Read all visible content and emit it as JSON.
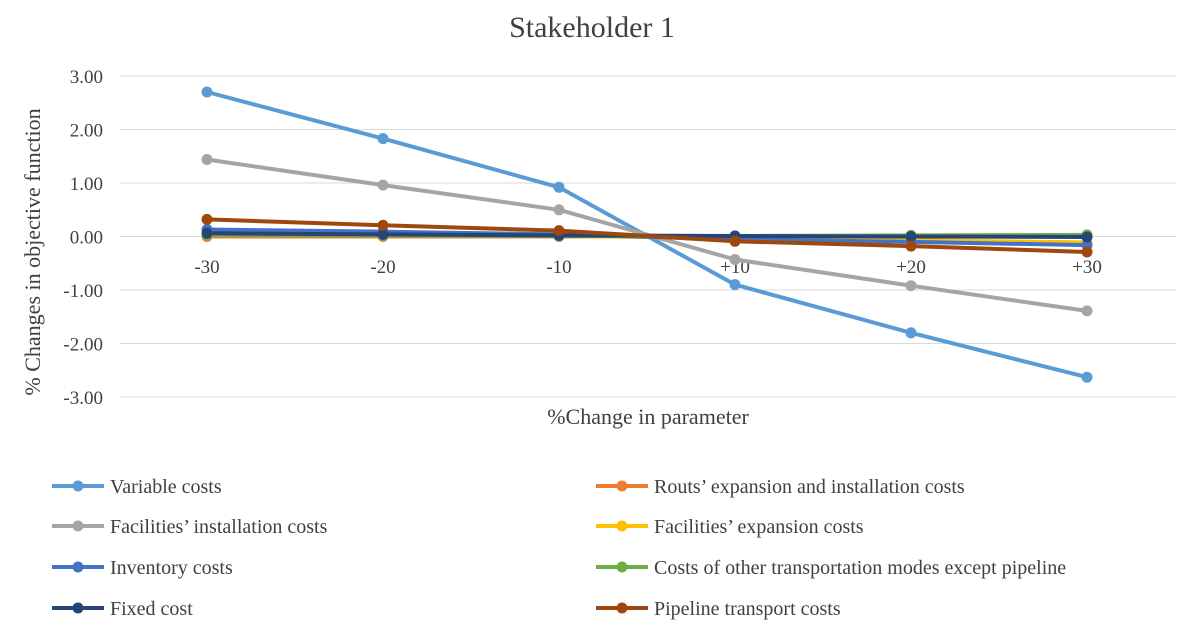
{
  "chart_data": {
    "type": "line",
    "title": "Stakeholder 1",
    "xlabel": "%Change in parameter",
    "ylabel": "% Changes in objective function",
    "categories": [
      "-30",
      "-20",
      "-10",
      "+10",
      "+20",
      "+30"
    ],
    "x": [
      -30,
      -20,
      -10,
      10,
      20,
      30
    ],
    "y_ticks": [
      "3.00",
      "2.00",
      "1.00",
      "0.00",
      "-1.00",
      "-2.00",
      "-3.00"
    ],
    "ylim": [
      -3,
      3
    ],
    "grid": true,
    "legend_position": "bottom",
    "series": [
      {
        "name": "Variable costs",
        "color": "#5B9BD5",
        "values": [
          2.7,
          1.83,
          0.92,
          -0.9,
          -1.8,
          -2.63
        ]
      },
      {
        "name": "Routs’ expansion and installation costs",
        "color": "#ED7D31",
        "values": [
          0.0,
          0.0,
          0.0,
          0.0,
          0.0,
          0.0
        ]
      },
      {
        "name": "Facilities’ installation costs",
        "color": "#A5A5A5",
        "values": [
          1.44,
          0.96,
          0.5,
          -0.43,
          -0.92,
          -1.39
        ]
      },
      {
        "name": "Facilities’ expansion costs",
        "color": "#FFC000",
        "values": [
          0.04,
          0.03,
          0.01,
          -0.03,
          -0.07,
          -0.11
        ]
      },
      {
        "name": "Inventory costs",
        "color": "#4472C4",
        "values": [
          0.13,
          0.09,
          0.04,
          -0.05,
          -0.1,
          -0.16
        ]
      },
      {
        "name": "Costs of other transportation modes except pipeline",
        "color": "#70AD47",
        "values": [
          0.03,
          0.02,
          0.01,
          0.01,
          0.02,
          0.03
        ]
      },
      {
        "name": "Fixed cost",
        "color": "#264478",
        "values": [
          0.06,
          0.04,
          0.02,
          0.01,
          0.0,
          -0.01
        ]
      },
      {
        "name": "Pipeline transport costs",
        "color": "#9E480E",
        "values": [
          0.32,
          0.21,
          0.11,
          -0.09,
          -0.18,
          -0.29
        ]
      }
    ]
  }
}
